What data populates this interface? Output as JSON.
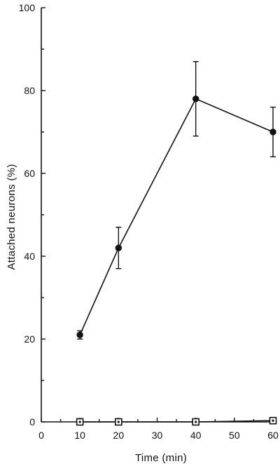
{
  "chart_data": {
    "type": "line",
    "title": "",
    "xlabel": "Time (min)",
    "ylabel": "Attached neurons (%)",
    "xlim": [
      0,
      60
    ],
    "ylim": [
      0,
      100
    ],
    "xticks": [
      0,
      10,
      20,
      30,
      40,
      50,
      60
    ],
    "yticks": [
      0,
      20,
      40,
      60,
      80,
      100
    ],
    "grid": false,
    "legend": "none",
    "series": [
      {
        "marker": "filled-circle",
        "x": [
          10,
          20,
          40,
          60
        ],
        "y": [
          21,
          42,
          78,
          70
        ],
        "err_low": [
          20,
          37,
          69,
          64
        ],
        "err_high": [
          22,
          47,
          87,
          76
        ]
      },
      {
        "marker": "open-square",
        "x": [
          10,
          20,
          40,
          60
        ],
        "y": [
          0,
          0,
          0,
          0.3
        ]
      }
    ]
  }
}
